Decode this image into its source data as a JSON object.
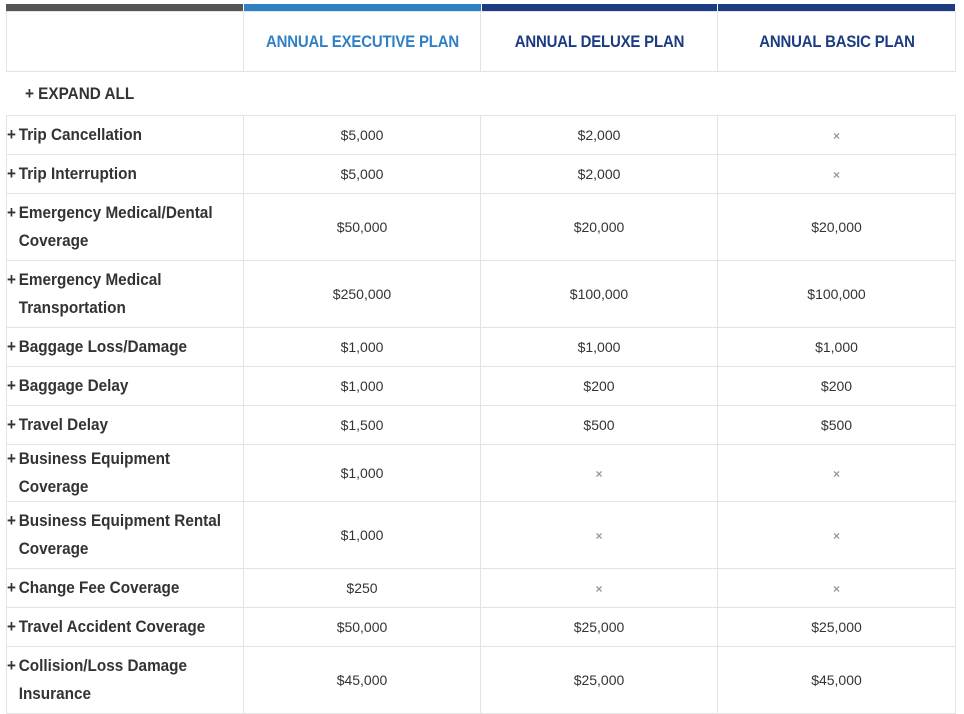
{
  "header": {
    "plans": [
      {
        "name": "ANNUAL EXECUTIVE PLAN",
        "color": "#2f80c4"
      },
      {
        "name": "ANNUAL DELUXE PLAN",
        "color": "#1b3b82"
      },
      {
        "name": "ANNUAL BASIC PLAN",
        "color": "#1b3b82"
      }
    ]
  },
  "expand_all_label": "+ EXPAND ALL",
  "rows": [
    {
      "label": "Trip Cancellation",
      "values": [
        "$5,000",
        "$2,000",
        "×"
      ]
    },
    {
      "label": "Trip Interruption",
      "values": [
        "$5,000",
        "$2,000",
        "×"
      ]
    },
    {
      "label": "Emergency Medical/Dental Coverage",
      "values": [
        "$50,000",
        "$20,000",
        "$20,000"
      ]
    },
    {
      "label": "Emergency Medical Transportation",
      "values": [
        "$250,000",
        "$100,000",
        "$100,000"
      ]
    },
    {
      "label": "Baggage Loss/Damage",
      "values": [
        "$1,000",
        "$1,000",
        "$1,000"
      ]
    },
    {
      "label": "Baggage Delay",
      "values": [
        "$1,000",
        "$200",
        "$200"
      ]
    },
    {
      "label": "Travel Delay",
      "values": [
        "$1,500",
        "$500",
        "$500"
      ]
    },
    {
      "label": "Business Equipment Coverage",
      "values": [
        "$1,000",
        "×",
        "×"
      ]
    },
    {
      "label": "Business Equipment Rental Coverage",
      "values": [
        "$1,000",
        "×",
        "×"
      ]
    },
    {
      "label": "Change Fee Coverage",
      "values": [
        "$250",
        "×",
        "×"
      ]
    },
    {
      "label": "Travel Accident Coverage",
      "values": [
        "$50,000",
        "$25,000",
        "$25,000"
      ]
    },
    {
      "label": "Collision/Loss Damage Insurance",
      "values": [
        "$45,000",
        "$25,000",
        "$45,000"
      ]
    }
  ],
  "not_included_icon": "x-icon"
}
